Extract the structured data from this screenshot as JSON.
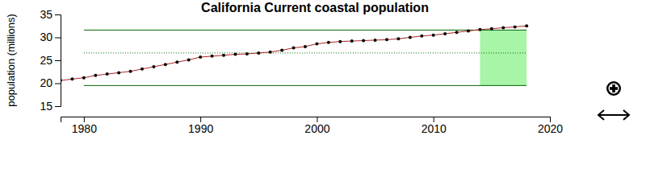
{
  "chart_data": {
    "type": "line",
    "title": "California Current coastal population",
    "y_label": "population (millions)",
    "x": [
      1978,
      1979,
      1980,
      1981,
      1982,
      1983,
      1984,
      1985,
      1986,
      1987,
      1988,
      1989,
      1990,
      1991,
      1992,
      1993,
      1994,
      1995,
      1996,
      1997,
      1998,
      1999,
      2000,
      2001,
      2002,
      2003,
      2004,
      2005,
      2006,
      2007,
      2008,
      2009,
      2010,
      2011,
      2012,
      2013,
      2014,
      2015,
      2016,
      2017,
      2018
    ],
    "values": [
      20.6,
      20.9,
      21.2,
      21.7,
      22.0,
      22.3,
      22.6,
      23.1,
      23.6,
      24.1,
      24.6,
      25.1,
      25.7,
      25.9,
      26.1,
      26.3,
      26.4,
      26.6,
      26.8,
      27.2,
      27.7,
      28.0,
      28.6,
      28.9,
      29.1,
      29.2,
      29.3,
      29.4,
      29.5,
      29.7,
      30.0,
      30.3,
      30.5,
      30.8,
      31.1,
      31.4,
      31.7,
      31.9,
      32.1,
      32.3,
      32.5
    ],
    "color": "#b22222",
    "marker": "circle",
    "xlim": [
      1978,
      2020
    ],
    "xticks": [
      1980,
      1990,
      2000,
      2010,
      2020
    ],
    "ylim": [
      15,
      35
    ],
    "yticks": [
      15,
      20,
      25,
      30,
      35
    ],
    "reference_lines": [
      {
        "value": 26.6,
        "line_style": "dotted",
        "color": "#006400"
      },
      {
        "value": 31.6,
        "line_style": "solid",
        "color": "#006400"
      },
      {
        "value": 19.5,
        "line_style": "solid",
        "color": "#006400"
      }
    ],
    "reference_x_range": [
      1980,
      2018
    ],
    "shaded_range": [
      2014,
      2018
    ]
  }
}
